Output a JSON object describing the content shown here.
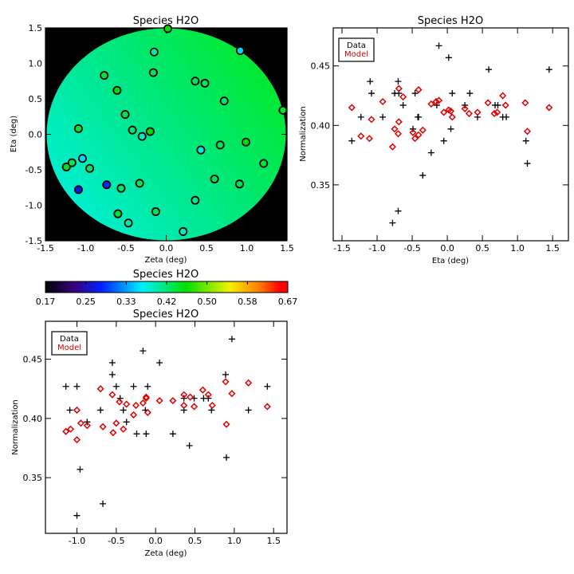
{
  "colorbar": {
    "title": "Species H2O",
    "labels": [
      "0.17",
      "0.25",
      "0.33",
      "0.42",
      "0.50",
      "0.58",
      "0.67"
    ],
    "range": [
      0.17,
      0.67
    ]
  },
  "chart_data": [
    {
      "type": "scatter",
      "title": "Species H2O",
      "xlabel": "Zeta (deg)",
      "ylabel": "Eta (deg)",
      "xlim": [
        -1.5,
        1.5
      ],
      "ylim": [
        -1.5,
        1.5
      ],
      "xticks": [
        "-1.5",
        "-1.0",
        "-0.5",
        "0.0",
        "0.5",
        "1.0",
        "1.5"
      ],
      "yticks": [
        "-1.5",
        "-1.0",
        "-0.5",
        "0.0",
        "0.5",
        "1.0",
        "1.5"
      ],
      "background": "#000000",
      "points": [
        [
          0.02,
          1.49,
          0.46
        ],
        [
          -0.15,
          1.16,
          0.4
        ],
        [
          0.92,
          1.18,
          0.36
        ],
        [
          -0.16,
          0.87,
          0.43
        ],
        [
          -0.77,
          0.83,
          0.44
        ],
        [
          0.36,
          0.75,
          0.43
        ],
        [
          0.48,
          0.72,
          0.43
        ],
        [
          -0.61,
          0.62,
          0.46
        ],
        [
          0.72,
          0.47,
          0.42
        ],
        [
          1.45,
          0.34,
          0.44
        ],
        [
          -0.51,
          0.28,
          0.43
        ],
        [
          -1.09,
          0.08,
          0.44
        ],
        [
          -0.42,
          0.06,
          0.42
        ],
        [
          -0.2,
          0.04,
          0.46
        ],
        [
          -0.3,
          -0.03,
          0.39
        ],
        [
          0.67,
          -0.15,
          0.43
        ],
        [
          0.99,
          -0.11,
          0.46
        ],
        [
          0.43,
          -0.22,
          0.38
        ],
        [
          1.21,
          -0.41,
          0.44
        ],
        [
          -1.24,
          -0.46,
          0.45
        ],
        [
          -1.17,
          -0.4,
          0.43
        ],
        [
          -1.04,
          -0.34,
          0.36
        ],
        [
          -0.95,
          -0.48,
          0.42
        ],
        [
          0.6,
          -0.63,
          0.43
        ],
        [
          0.91,
          -0.7,
          0.43
        ],
        [
          -1.09,
          -0.78,
          0.28
        ],
        [
          -0.74,
          -0.71,
          0.29
        ],
        [
          -0.56,
          -0.76,
          0.42
        ],
        [
          -0.33,
          -0.69,
          0.43
        ],
        [
          0.36,
          -0.93,
          0.41
        ],
        [
          -0.6,
          -1.12,
          0.44
        ],
        [
          -0.13,
          -1.09,
          0.43
        ],
        [
          -0.47,
          -1.25,
          0.4
        ],
        [
          0.21,
          -1.37,
          0.39
        ]
      ]
    },
    {
      "type": "scatter",
      "title": "Species H2O",
      "xlabel": "Eta (deg)",
      "ylabel": "Normalization",
      "xlim": [
        -1.625,
        1.725
      ],
      "ylim": [
        0.303,
        0.482
      ],
      "xticks": [
        "-1.5",
        "-1.0",
        "-0.5",
        "0.0",
        "0.5",
        "1.0",
        "1.5"
      ],
      "yticks": [
        "0.35",
        "0.40",
        "0.45"
      ],
      "legend": {
        "position": "top-left",
        "entries": [
          {
            "label": "Data",
            "color": "#000000"
          },
          {
            "label": "Model",
            "color": "#e00000"
          }
        ]
      },
      "data": [
        [
          -1.36,
          0.387
        ],
        [
          -1.23,
          0.407
        ],
        [
          -1.1,
          0.437
        ],
        [
          -1.08,
          0.427
        ],
        [
          -0.92,
          0.407
        ],
        [
          -0.78,
          0.318
        ],
        [
          -0.75,
          0.427
        ],
        [
          -0.7,
          0.437
        ],
        [
          -0.7,
          0.328
        ],
        [
          -0.69,
          0.427
        ],
        [
          -0.63,
          0.417
        ],
        [
          -0.46,
          0.427
        ],
        [
          -0.49,
          0.397
        ],
        [
          -0.42,
          0.407
        ],
        [
          -0.41,
          0.407
        ],
        [
          -0.35,
          0.358
        ],
        [
          -0.23,
          0.377
        ],
        [
          -0.15,
          0.417
        ],
        [
          -0.12,
          0.467
        ],
        [
          -0.05,
          0.387
        ],
        [
          0.02,
          0.457
        ],
        [
          0.05,
          0.397
        ],
        [
          0.07,
          0.427
        ],
        [
          0.25,
          0.417
        ],
        [
          0.32,
          0.427
        ],
        [
          0.43,
          0.407
        ],
        [
          0.59,
          0.447
        ],
        [
          0.68,
          0.417
        ],
        [
          0.72,
          0.417
        ],
        [
          0.79,
          0.407
        ],
        [
          0.84,
          0.407
        ],
        [
          1.12,
          0.387
        ],
        [
          1.14,
          0.368
        ],
        [
          1.45,
          0.447
        ]
      ],
      "model": [
        [
          -1.36,
          0.415
        ],
        [
          -1.23,
          0.391
        ],
        [
          -1.11,
          0.389
        ],
        [
          -1.08,
          0.405
        ],
        [
          -0.92,
          0.42
        ],
        [
          -0.78,
          0.382
        ],
        [
          -0.75,
          0.397
        ],
        [
          -0.7,
          0.393
        ],
        [
          -0.69,
          0.431
        ],
        [
          -0.69,
          0.403
        ],
        [
          -0.63,
          0.424
        ],
        [
          -0.49,
          0.394
        ],
        [
          -0.46,
          0.389
        ],
        [
          -0.41,
          0.392
        ],
        [
          -0.41,
          0.43
        ],
        [
          -0.35,
          0.396
        ],
        [
          -0.23,
          0.418
        ],
        [
          -0.16,
          0.42
        ],
        [
          -0.12,
          0.421
        ],
        [
          -0.05,
          0.411
        ],
        [
          0.02,
          0.413
        ],
        [
          0.05,
          0.412
        ],
        [
          0.07,
          0.407
        ],
        [
          0.25,
          0.414
        ],
        [
          0.31,
          0.41
        ],
        [
          0.43,
          0.411
        ],
        [
          0.58,
          0.419
        ],
        [
          0.67,
          0.41
        ],
        [
          0.71,
          0.411
        ],
        [
          0.79,
          0.425
        ],
        [
          0.83,
          0.417
        ],
        [
          1.11,
          0.419
        ],
        [
          1.14,
          0.395
        ],
        [
          1.45,
          0.415
        ]
      ]
    },
    {
      "type": "scatter",
      "title": "Species H2O",
      "xlabel": "Zeta (deg)",
      "ylabel": "Normalization",
      "xlim": [
        -1.4,
        1.67
      ],
      "ylim": [
        0.303,
        0.482
      ],
      "xticks": [
        "-1.0",
        "-0.5",
        "0.0",
        "0.5",
        "1.0",
        "1.5"
      ],
      "yticks": [
        "0.35",
        "0.40",
        "0.45"
      ],
      "legend": {
        "position": "top-left",
        "entries": [
          {
            "label": "Data",
            "color": "#000000"
          },
          {
            "label": "Model",
            "color": "#e00000"
          }
        ]
      },
      "data": [
        [
          -1.14,
          0.427
        ],
        [
          -1.09,
          0.407
        ],
        [
          -1.0,
          0.427
        ],
        [
          -1.0,
          0.318
        ],
        [
          -0.96,
          0.357
        ],
        [
          -0.87,
          0.397
        ],
        [
          -0.7,
          0.407
        ],
        [
          -0.67,
          0.328
        ],
        [
          -0.55,
          0.447
        ],
        [
          -0.55,
          0.437
        ],
        [
          -0.5,
          0.427
        ],
        [
          -0.45,
          0.417
        ],
        [
          -0.41,
          0.407
        ],
        [
          -0.37,
          0.397
        ],
        [
          -0.28,
          0.427
        ],
        [
          -0.24,
          0.387
        ],
        [
          -0.16,
          0.457
        ],
        [
          -0.13,
          0.407
        ],
        [
          -0.12,
          0.387
        ],
        [
          -0.1,
          0.427
        ],
        [
          0.05,
          0.447
        ],
        [
          0.22,
          0.387
        ],
        [
          0.36,
          0.417
        ],
        [
          0.36,
          0.407
        ],
        [
          0.43,
          0.377
        ],
        [
          0.49,
          0.417
        ],
        [
          0.61,
          0.417
        ],
        [
          0.67,
          0.417
        ],
        [
          0.71,
          0.407
        ],
        [
          0.89,
          0.437
        ],
        [
          0.9,
          0.367
        ],
        [
          0.97,
          0.467
        ],
        [
          1.18,
          0.407
        ],
        [
          1.42,
          0.427
        ]
      ],
      "model": [
        [
          -1.14,
          0.389
        ],
        [
          -1.08,
          0.391
        ],
        [
          -1.0,
          0.407
        ],
        [
          -1.0,
          0.382
        ],
        [
          -0.95,
          0.396
        ],
        [
          -0.87,
          0.394
        ],
        [
          -0.7,
          0.425
        ],
        [
          -0.67,
          0.393
        ],
        [
          -0.55,
          0.42
        ],
        [
          -0.54,
          0.388
        ],
        [
          -0.5,
          0.396
        ],
        [
          -0.46,
          0.414
        ],
        [
          -0.41,
          0.391
        ],
        [
          -0.37,
          0.412
        ],
        [
          -0.28,
          0.403
        ],
        [
          -0.25,
          0.411
        ],
        [
          -0.16,
          0.413
        ],
        [
          -0.12,
          0.418
        ],
        [
          -0.12,
          0.417
        ],
        [
          -0.1,
          0.405
        ],
        [
          0.05,
          0.415
        ],
        [
          0.22,
          0.415
        ],
        [
          0.36,
          0.42
        ],
        [
          0.36,
          0.411
        ],
        [
          0.44,
          0.418
        ],
        [
          0.49,
          0.41
        ],
        [
          0.6,
          0.424
        ],
        [
          0.67,
          0.42
        ],
        [
          0.72,
          0.411
        ],
        [
          0.89,
          0.431
        ],
        [
          0.9,
          0.395
        ],
        [
          0.97,
          0.421
        ],
        [
          1.18,
          0.43
        ],
        [
          1.42,
          0.41
        ]
      ]
    }
  ]
}
